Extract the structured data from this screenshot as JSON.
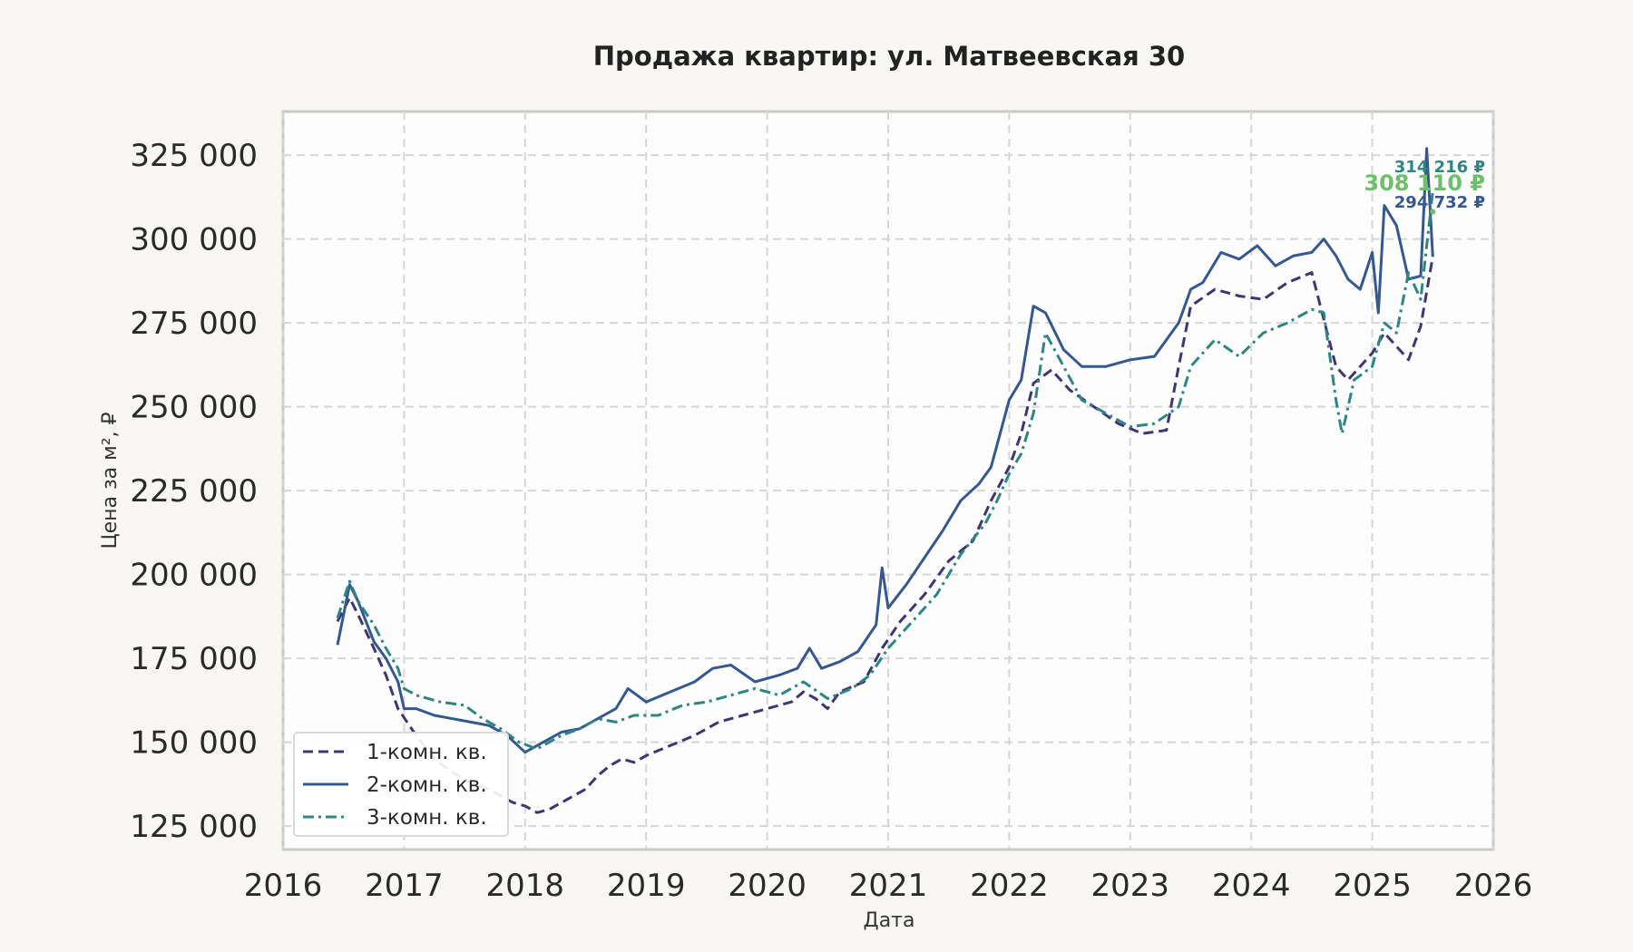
{
  "chart_data": {
    "type": "line",
    "title": "Продажа квартир: ул. Матвеевская 30",
    "xlabel": "Дата",
    "ylabel": "Цена за м², ₽",
    "xlim": [
      2016,
      2026
    ],
    "ylim": [
      118000,
      338000
    ],
    "x_ticks": [
      2016,
      2017,
      2018,
      2019,
      2020,
      2021,
      2022,
      2023,
      2024,
      2025,
      2026
    ],
    "y_ticks": [
      125000,
      150000,
      175000,
      200000,
      225000,
      250000,
      275000,
      300000,
      325000
    ],
    "y_tick_labels": [
      "125 000",
      "150 000",
      "175 000",
      "200 000",
      "225 000",
      "250 000",
      "275 000",
      "300 000",
      "325 000"
    ],
    "grid": true,
    "legend_position": "bottom-left",
    "series": [
      {
        "name": "1-комн. кв.",
        "color": "#3e3573",
        "dash": "dashed",
        "x": [
          2016.45,
          2016.55,
          2016.62,
          2016.75,
          2016.85,
          2016.95,
          2017.1,
          2017.25,
          2017.4,
          2017.55,
          2017.7,
          2017.8,
          2017.9,
          2018.0,
          2018.1,
          2018.2,
          2018.3,
          2018.4,
          2018.5,
          2018.6,
          2018.7,
          2018.8,
          2018.9,
          2019.0,
          2019.2,
          2019.4,
          2019.6,
          2019.8,
          2020.0,
          2020.2,
          2020.3,
          2020.4,
          2020.5,
          2020.6,
          2020.8,
          2020.95,
          2021.1,
          2021.3,
          2021.5,
          2021.7,
          2021.85,
          2022.0,
          2022.1,
          2022.2,
          2022.35,
          2022.5,
          2022.7,
          2022.9,
          2023.1,
          2023.3,
          2023.4,
          2023.5,
          2023.7,
          2023.9,
          2024.1,
          2024.3,
          2024.5,
          2024.6,
          2024.7,
          2024.8,
          2024.9,
          2025.0,
          2025.1,
          2025.2,
          2025.3,
          2025.4,
          2025.5
        ],
        "values": [
          186000,
          193000,
          188000,
          178000,
          170000,
          160000,
          152000,
          145000,
          141000,
          138000,
          136000,
          134000,
          132000,
          131000,
          129000,
          130000,
          132000,
          134000,
          136000,
          140000,
          143000,
          145000,
          144000,
          146000,
          149000,
          152000,
          156000,
          158000,
          160000,
          162000,
          165000,
          163000,
          160000,
          165000,
          168000,
          178000,
          186000,
          194000,
          204000,
          210000,
          222000,
          232000,
          242000,
          257000,
          261000,
          255000,
          250000,
          245000,
          242000,
          243000,
          262000,
          280000,
          285000,
          283000,
          282000,
          287000,
          290000,
          276000,
          262000,
          258000,
          262000,
          266000,
          272000,
          268000,
          264000,
          274000,
          294732
        ]
      },
      {
        "name": "2-комн. кв.",
        "color": "#34588f",
        "dash": "solid",
        "x": [
          2016.45,
          2016.55,
          2016.62,
          2016.75,
          2016.85,
          2016.95,
          2017.0,
          2017.1,
          2017.25,
          2017.4,
          2017.55,
          2017.7,
          2017.85,
          2018.0,
          2018.15,
          2018.3,
          2018.45,
          2018.6,
          2018.75,
          2018.85,
          2019.0,
          2019.2,
          2019.4,
          2019.55,
          2019.7,
          2019.9,
          2020.1,
          2020.25,
          2020.35,
          2020.45,
          2020.6,
          2020.75,
          2020.9,
          2020.95,
          2021.0,
          2021.15,
          2021.3,
          2021.45,
          2021.6,
          2021.75,
          2021.85,
          2022.0,
          2022.1,
          2022.2,
          2022.3,
          2022.45,
          2022.6,
          2022.8,
          2023.0,
          2023.2,
          2023.4,
          2023.5,
          2023.6,
          2023.75,
          2023.9,
          2024.05,
          2024.2,
          2024.35,
          2024.5,
          2024.6,
          2024.7,
          2024.8,
          2024.9,
          2025.0,
          2025.05,
          2025.1,
          2025.2,
          2025.3,
          2025.4,
          2025.45,
          2025.5
        ],
        "values": [
          179000,
          197000,
          192000,
          180000,
          175000,
          168000,
          160000,
          160000,
          158000,
          157000,
          156000,
          155000,
          152000,
          147000,
          150000,
          153000,
          154000,
          157000,
          160000,
          166000,
          162000,
          165000,
          168000,
          172000,
          173000,
          168000,
          170000,
          172000,
          178000,
          172000,
          174000,
          177000,
          185000,
          202000,
          190000,
          197000,
          205000,
          213000,
          222000,
          227000,
          232000,
          252000,
          258000,
          280000,
          278000,
          267000,
          262000,
          262000,
          264000,
          265000,
          275000,
          285000,
          287000,
          296000,
          294000,
          298000,
          292000,
          295000,
          296000,
          300000,
          295000,
          288000,
          285000,
          296000,
          278000,
          310000,
          304000,
          288000,
          289000,
          327000,
          294732
        ]
      },
      {
        "name": "3-комн. кв.",
        "color": "#2e8584",
        "dash": "dashdot",
        "x": [
          2016.45,
          2016.55,
          2016.62,
          2016.75,
          2016.85,
          2016.95,
          2017.0,
          2017.1,
          2017.3,
          2017.5,
          2017.65,
          2017.8,
          2017.95,
          2018.1,
          2018.3,
          2018.45,
          2018.6,
          2018.75,
          2018.9,
          2019.1,
          2019.3,
          2019.5,
          2019.7,
          2019.9,
          2020.1,
          2020.3,
          2020.5,
          2020.7,
          2020.85,
          2021.0,
          2021.2,
          2021.4,
          2021.6,
          2021.8,
          2021.9,
          2022.0,
          2022.1,
          2022.2,
          2022.3,
          2022.45,
          2022.6,
          2022.8,
          2023.0,
          2023.2,
          2023.4,
          2023.5,
          2023.7,
          2023.9,
          2024.1,
          2024.3,
          2024.5,
          2024.6,
          2024.7,
          2024.75,
          2024.85,
          2025.0,
          2025.1,
          2025.2,
          2025.3,
          2025.4,
          2025.5
        ],
        "values": [
          187000,
          198000,
          192000,
          185000,
          178000,
          172000,
          166000,
          164000,
          162000,
          161000,
          157000,
          154000,
          150000,
          148000,
          152000,
          154000,
          157000,
          156000,
          158000,
          158000,
          161000,
          162000,
          164000,
          166000,
          164000,
          168000,
          163000,
          166000,
          170000,
          178000,
          186000,
          194000,
          206000,
          215000,
          222000,
          230000,
          236000,
          248000,
          272000,
          262000,
          252000,
          248000,
          244000,
          245000,
          250000,
          262000,
          270000,
          265000,
          272000,
          275000,
          279000,
          278000,
          252000,
          242000,
          258000,
          262000,
          275000,
          272000,
          290000,
          282000,
          314216
        ]
      },
      {
        "name": "",
        "color": "#6cc069",
        "dash": "solid",
        "x": [
          2025.5
        ],
        "values": [
          308110
        ]
      }
    ],
    "end_labels": [
      {
        "text": "314 216 ₽",
        "value": 314216,
        "color": "#2e8584",
        "size": "small"
      },
      {
        "text": "308 110 ₽",
        "value": 308110,
        "color": "#6cc069",
        "size": "large"
      },
      {
        "text": "294 732 ₽",
        "value": 294732,
        "color": "#34588f",
        "size": "small"
      }
    ]
  }
}
